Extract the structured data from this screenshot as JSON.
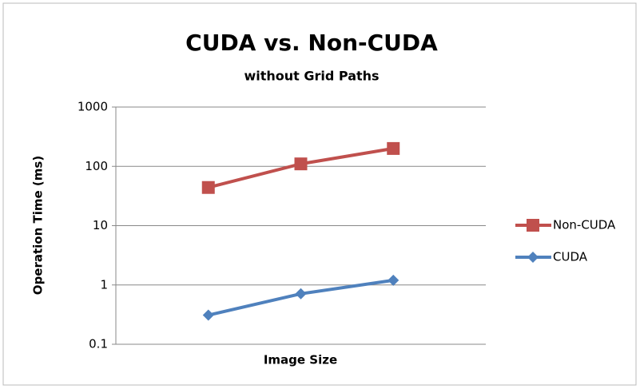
{
  "chart_data": {
    "type": "line",
    "title": "CUDA vs. Non-CUDA",
    "subtitle": "without Grid Paths",
    "x_label": "Image Size",
    "y_label": "Operation Time (ms)",
    "categories": [
      null,
      null,
      null
    ],
    "series": [
      {
        "name": "Non-CUDA",
        "color": "#c0504d",
        "marker": "square",
        "values": [
          44,
          110,
          200
        ]
      },
      {
        "name": "CUDA",
        "color": "#4f81bd",
        "marker": "diamond",
        "values": [
          0.31,
          0.71,
          1.2
        ]
      }
    ],
    "ylim": [
      0.1,
      1000
    ],
    "yticks": [
      0.1,
      1,
      10,
      100,
      1000
    ],
    "log_y": true,
    "grid": true,
    "legend": "right"
  }
}
